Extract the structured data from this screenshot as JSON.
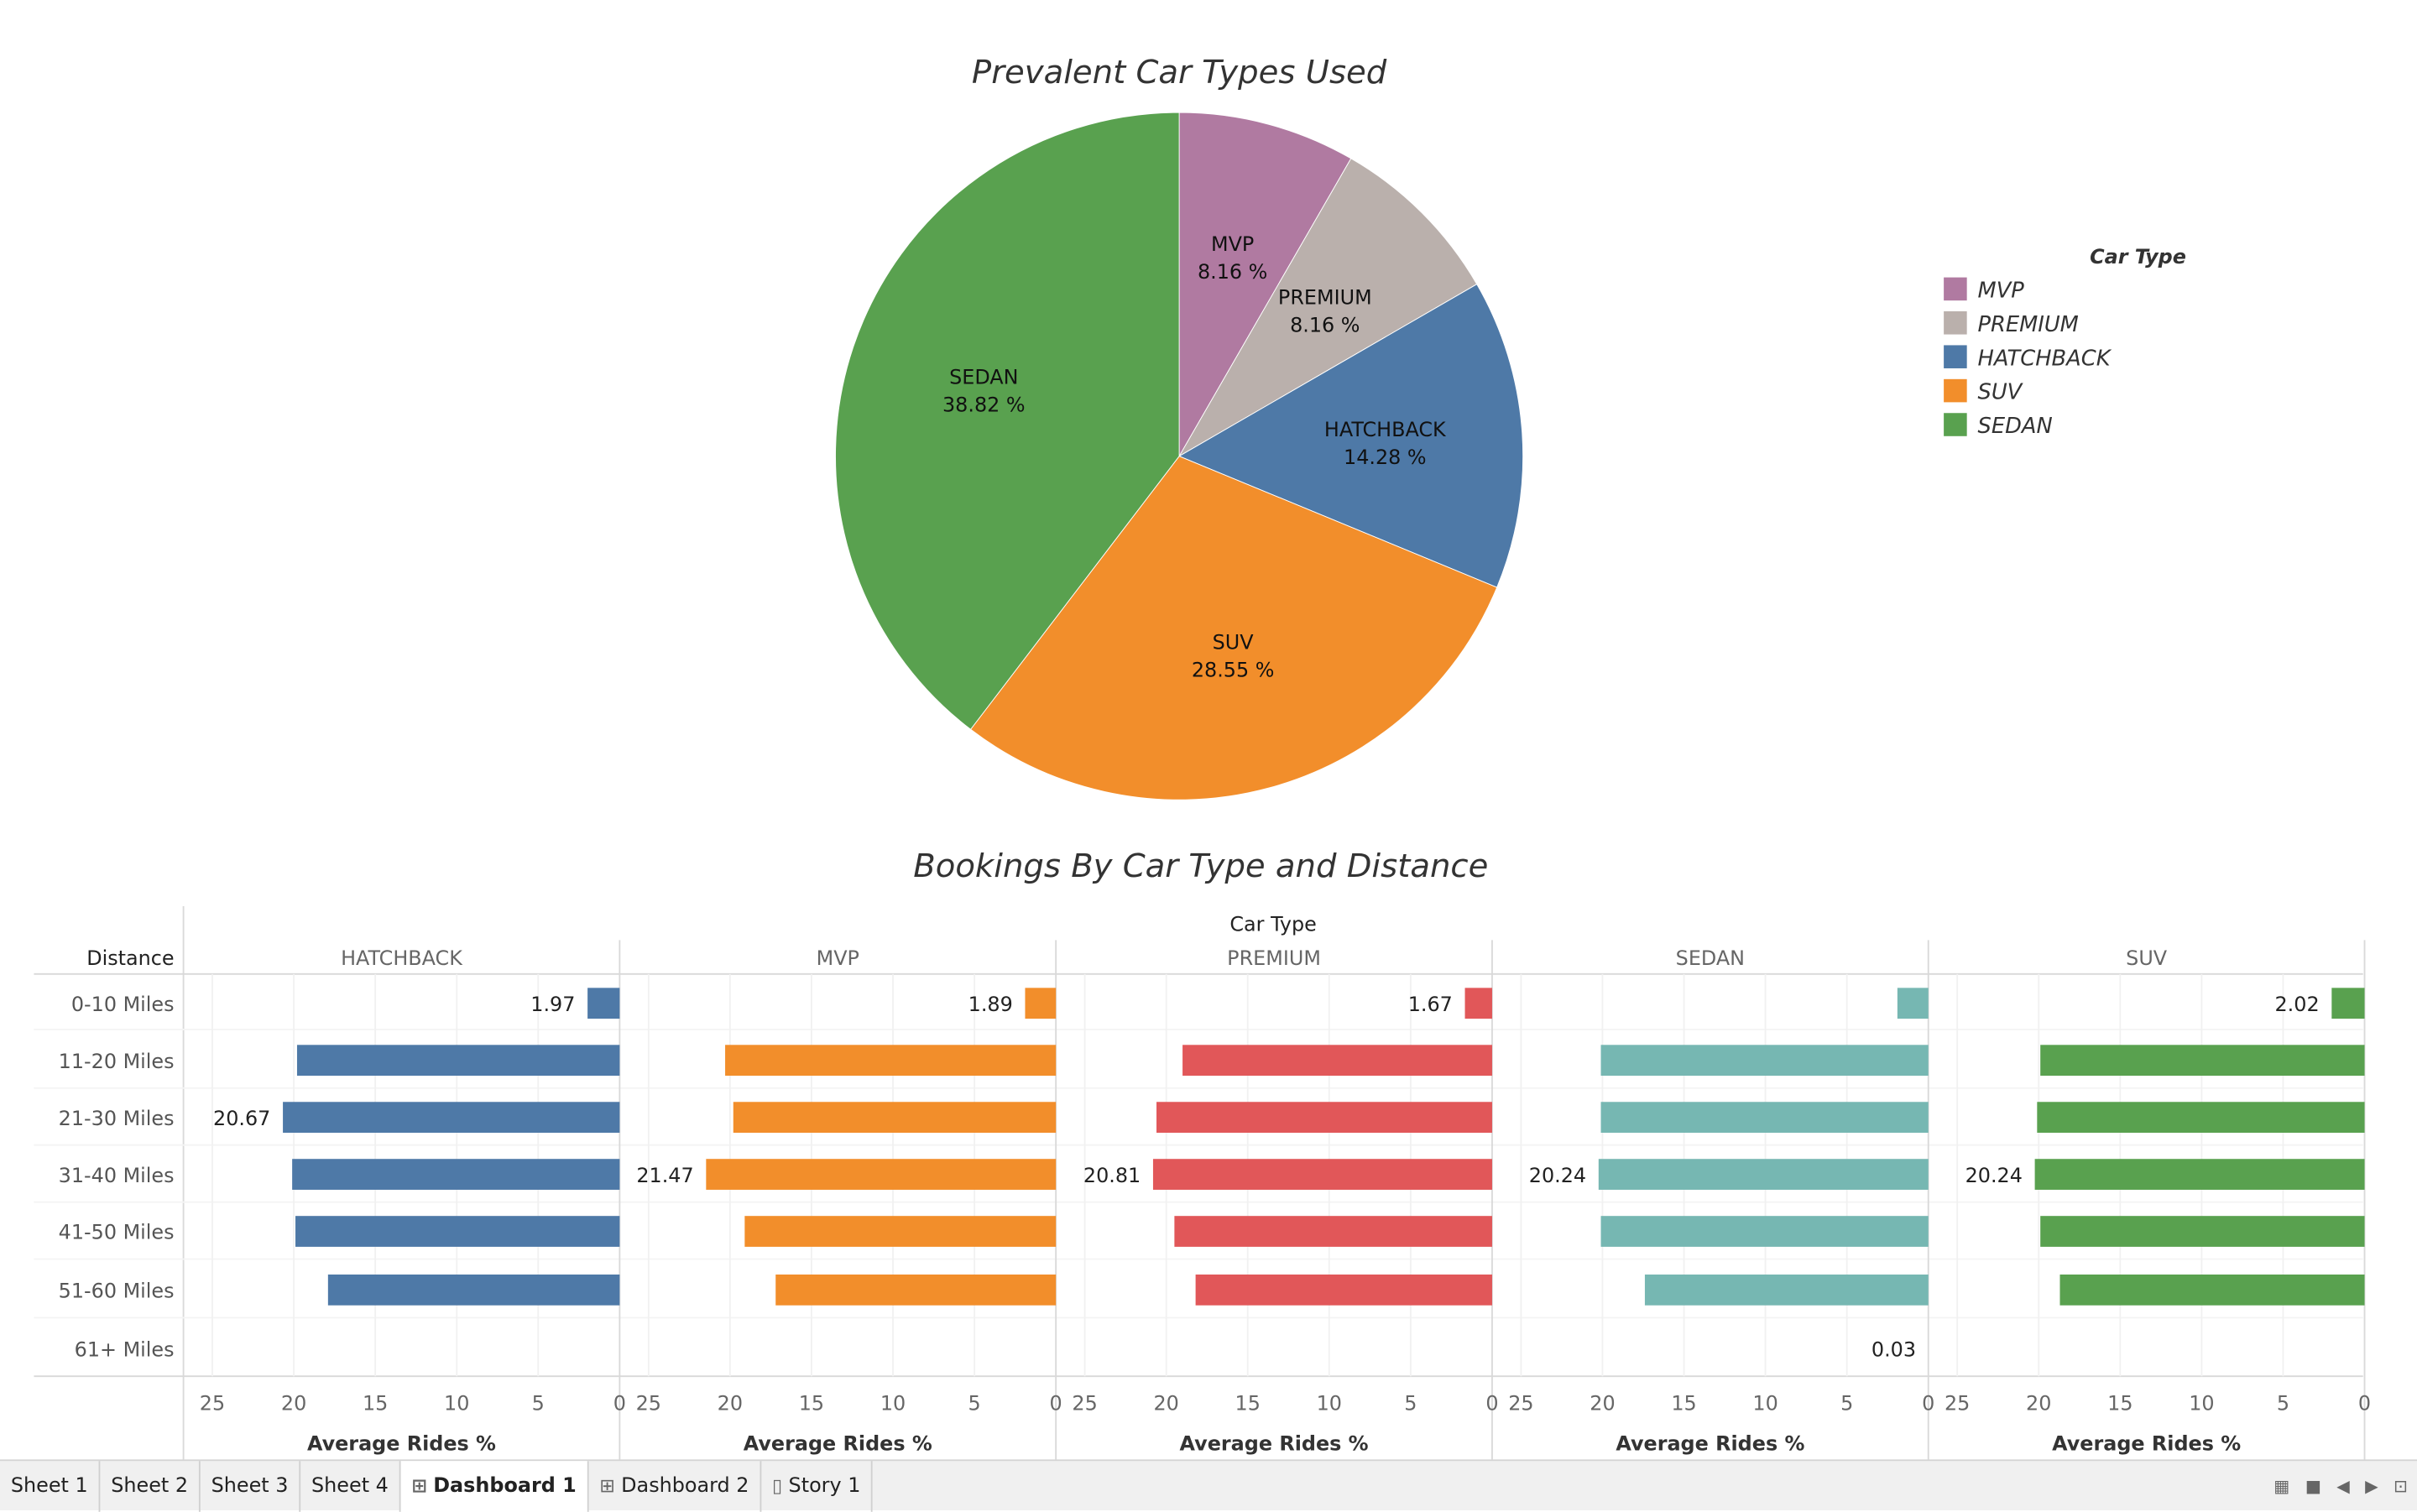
{
  "chart_data": [
    {
      "type": "pie",
      "title": "Prevalent Car Types Used",
      "legend": {
        "title": "Car Type",
        "placement": "right",
        "entries": [
          "MVP",
          "PREMIUM",
          "HATCHBACK",
          "SUV",
          "SEDAN"
        ]
      },
      "slices": [
        {
          "label": "MVP",
          "value": 8.16,
          "value_text": "8.16 %",
          "color": "#b07aa1"
        },
        {
          "label": "PREMIUM",
          "value": 8.16,
          "value_text": "8.16 %",
          "color": "#bab0ac"
        },
        {
          "label": "HATCHBACK",
          "value": 14.28,
          "value_text": "14.28 %",
          "color": "#4e79a7"
        },
        {
          "label": "SUV",
          "value": 28.55,
          "value_text": "28.55 %",
          "color": "#f28e2b"
        },
        {
          "label": "SEDAN",
          "value": 38.82,
          "value_text": "38.82 %",
          "color": "#59a14f"
        }
      ]
    },
    {
      "type": "bar",
      "orientation": "horizontal",
      "title": "Bookings By Car Type and Distance",
      "column_header": "Car Type",
      "row_header": "Distance",
      "xlabel": "Average Rides %",
      "xlim": [
        0,
        27
      ],
      "x_reversed": true,
      "x_ticks": [
        "25",
        "20",
        "15",
        "10",
        "5",
        "0"
      ],
      "categories": [
        "0-10 Miles",
        "11-20 Miles",
        "21-30 Miles",
        "31-40 Miles",
        "41-50 Miles",
        "51-60 Miles",
        "61+ Miles"
      ],
      "series": [
        {
          "name": "HATCHBACK",
          "color": "#4e79a7",
          "values": [
            1.97,
            19.8,
            20.67,
            20.1,
            19.9,
            17.9,
            0
          ],
          "labels": [
            "1.97",
            "",
            "20.67",
            "",
            "",
            "",
            ""
          ]
        },
        {
          "name": "MVP",
          "color": "#f28e2b",
          "values": [
            1.89,
            20.3,
            19.8,
            21.47,
            19.1,
            17.2,
            0
          ],
          "labels": [
            "1.89",
            "",
            "",
            "21.47",
            "",
            "",
            ""
          ]
        },
        {
          "name": "PREMIUM",
          "color": "#e15759",
          "values": [
            1.67,
            19.0,
            20.6,
            20.81,
            19.5,
            18.2,
            0
          ],
          "labels": [
            "1.67",
            "",
            "",
            "20.81",
            "",
            "",
            ""
          ]
        },
        {
          "name": "SEDAN",
          "color": "#76b7b2",
          "values": [
            1.9,
            20.1,
            20.1,
            20.24,
            20.1,
            17.4,
            0.03
          ],
          "labels": [
            "",
            "",
            "",
            "20.24",
            "",
            "",
            "0.03"
          ]
        },
        {
          "name": "SUV",
          "color": "#59a14f",
          "values": [
            2.02,
            19.9,
            20.1,
            20.24,
            19.9,
            18.7,
            0
          ],
          "labels": [
            "2.02",
            "",
            "",
            "20.24",
            "",
            "",
            ""
          ]
        }
      ]
    }
  ],
  "tabs": [
    {
      "label": "Sheet 1",
      "icon": "",
      "active": false
    },
    {
      "label": "Sheet 2",
      "icon": "",
      "active": false
    },
    {
      "label": "Sheet 3",
      "icon": "",
      "active": false
    },
    {
      "label": "Sheet 4",
      "icon": "",
      "active": false
    },
    {
      "label": "Dashboard 1",
      "icon": "dashboard-icon",
      "active": true
    },
    {
      "label": "Dashboard 2",
      "icon": "dashboard-icon",
      "active": false
    },
    {
      "label": "Story 1",
      "icon": "story-icon",
      "active": false
    }
  ],
  "status_icons": [
    "grid-view-icon",
    "filmstrip-icon",
    "prev-sheet-icon",
    "next-sheet-icon",
    "presentation-icon"
  ]
}
